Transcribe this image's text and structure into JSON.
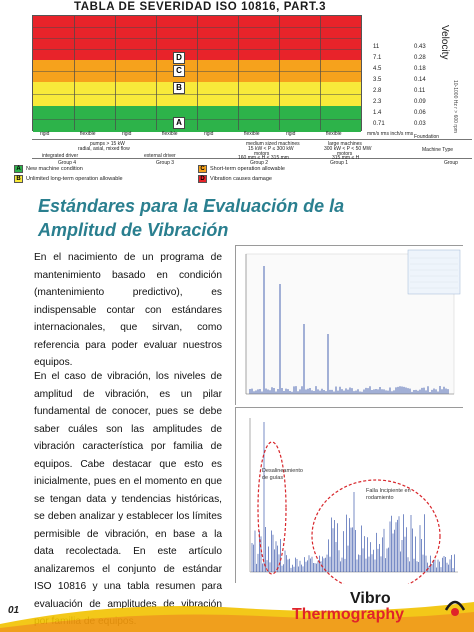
{
  "severity_table": {
    "title": "TABLA DE SEVERIDAD ISO 10816, PART.3",
    "zones": [
      "D",
      "C",
      "B",
      "A"
    ],
    "levels_in_s": [
      "11",
      "7.1",
      "4.5",
      "3.5",
      "2.8",
      "2.3",
      "1.4",
      "0.71"
    ],
    "levels_mm_s": [
      "0.43",
      "0.28",
      "0.18",
      "0.14",
      "0.11",
      "0.09",
      "0.06",
      "0.03"
    ],
    "units": "mm/s rms   inch/s rms",
    "axis_title": "Velocity",
    "axis_sub": "10-1000 Hz  r > 600 rpm",
    "column_labels": [
      "rigid",
      "flexible",
      "rigid",
      "flexible",
      "rigid",
      "flexible",
      "rigid",
      "flexible"
    ],
    "foundation_label": "Foundation",
    "machine_type_label": "Machine Type",
    "group_label": "Group",
    "foot": {
      "pumps": "pumps > 15 kW",
      "pumps_sub": "radial, axial, mixed flow",
      "medium": "medium sized machines",
      "medium_sub": "15 kW < P ≤ 300 kW",
      "large": "large machines",
      "large_sub": "300 kW < P < 50 MW",
      "integrated": "integrated driver",
      "external": "external driver",
      "motors1": "motors",
      "motors1_sub": "160 mm ≤ H < 315 mm",
      "motors2": "motors",
      "motors2_sub": "315 mm ≤ H",
      "group4": "Group 4",
      "group3": "Group 3",
      "group2": "Group 2",
      "group1": "Group 1"
    },
    "legend": [
      {
        "key": "A",
        "text": "New machine condition",
        "color": "#2db34a"
      },
      {
        "key": "B",
        "text": "Unlimited long-term operation allowable",
        "color": "#f8ea3a"
      },
      {
        "key": "C",
        "text": "Short-term operation allowable",
        "color": "#f6a21c"
      },
      {
        "key": "D",
        "text": "Vibration causes damage",
        "color": "#e8232a"
      }
    ]
  },
  "article": {
    "heading": "Estándares para la Evaluación de la Amplitud de Vibración",
    "paragraph_1": "En el nacimiento de un programa de mantenimiento basado en condición (mantenimiento predictivo), es indispensable contar con estándares internacionales, que sirvan, como referencia para poder evaluar nuestros equipos.",
    "paragraph_2": "En el caso de vibración, los niveles de amplitud de vibración, es un pilar fundamental de conocer, pues se debe saber cuáles son las amplitudes de vibración característica por familia de equipos. Cabe destacar que esto es inicialmente, pues en el momento en que se tengan data y tendencias históricas, se deben analizar y establecer los límites permisible de vibración, en base a la data recolectada. En este artículo analizaremos el conjunto de estándar ISO 10816 y una tabla resumen para evaluación de amplitudes de vibración por familia de equipos."
  },
  "charts": {
    "annotation_1": "Desalineamiento de guías",
    "annotation_2": "Falla Incipiente en rodamiento"
  },
  "footer": {
    "page_number": "01",
    "brand_line_1": "Vibro",
    "brand_line_2": "Thermography",
    "brand_color": "#e0232a"
  }
}
